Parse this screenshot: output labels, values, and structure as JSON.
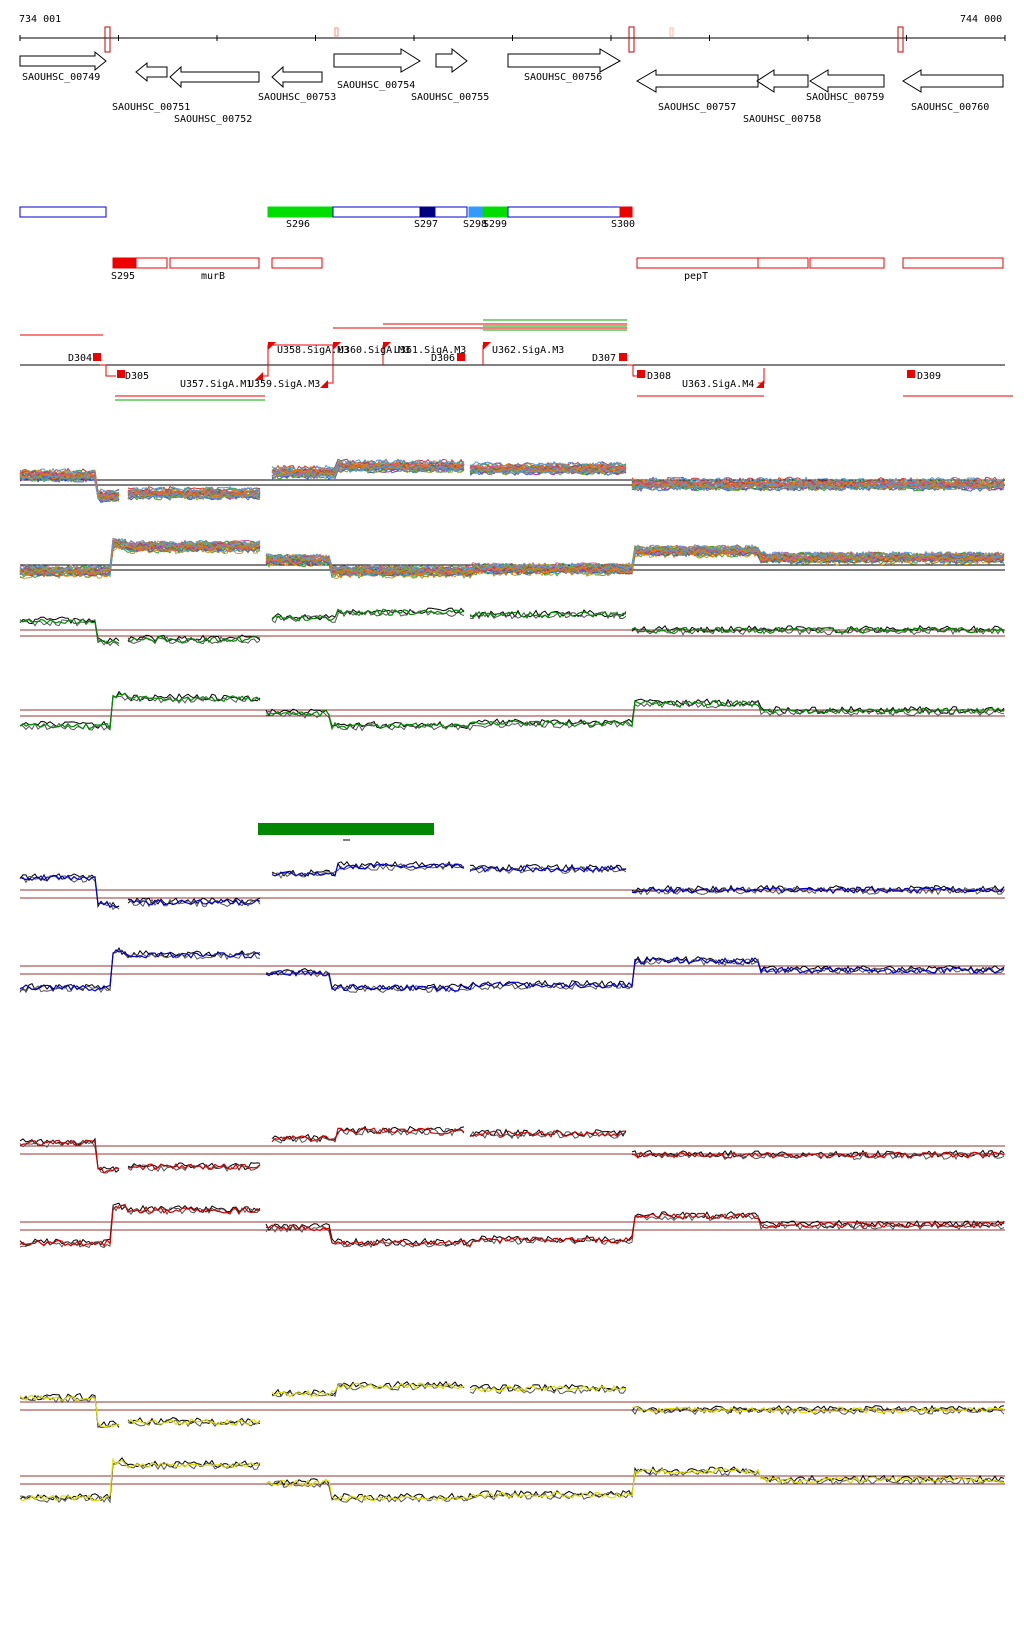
{
  "ruler": {
    "start_label": "734 001",
    "end_label": "744 000"
  },
  "colors": {
    "gene_stroke": "#000000",
    "feature_blue": "#0000cc",
    "feature_red": "#ee0000",
    "feature_green": "#00cc00",
    "feature_navy": "#000080",
    "feature_light_blue": "#3399ff",
    "bar_green": "#008800",
    "baseline_brown": "#993333",
    "trace_black": "#000000",
    "trace_green": "#008800",
    "trace_blue": "#0000cc",
    "trace_red": "#cc0000",
    "trace_yellow": "#dddd00"
  },
  "genes": [
    {
      "name": "SAOUHSC_00749",
      "strand": "+"
    },
    {
      "name": "SAOUHSC_00751",
      "strand": "-"
    },
    {
      "name": "SAOUHSC_00752",
      "strand": "-"
    },
    {
      "name": "SAOUHSC_00753",
      "strand": "-"
    },
    {
      "name": "SAOUHSC_00754",
      "strand": "+"
    },
    {
      "name": "SAOUHSC_00755",
      "strand": "+"
    },
    {
      "name": "SAOUHSC_00756",
      "strand": "+"
    },
    {
      "name": "SAOUHSC_00757",
      "strand": "-"
    },
    {
      "name": "SAOUHSC_00758",
      "strand": "-"
    },
    {
      "name": "SAOUHSC_00759",
      "strand": "-"
    },
    {
      "name": "SAOUHSC_00760",
      "strand": "-"
    }
  ],
  "plus_segments": [
    "S296",
    "S297",
    "S298",
    "S299",
    "S300"
  ],
  "minus_segments": [
    "S295",
    "murB",
    "pepT"
  ],
  "transcription_units": [
    "D304",
    "D305",
    "U357.SigA.M1",
    "U358.SigA.M3",
    "U359.SigA.M3",
    "U360.SigA.M3",
    "U361.SigA.M3",
    "D306",
    "U362.SigA.M3",
    "D307",
    "D308",
    "U363.SigA.M4",
    "D309"
  ]
}
